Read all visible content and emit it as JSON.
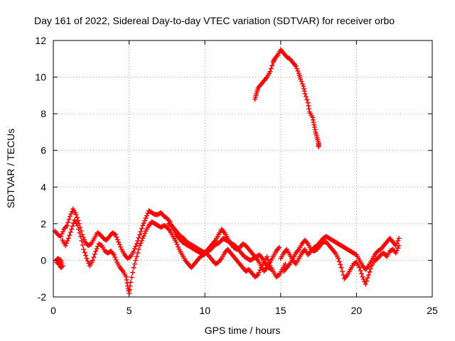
{
  "chart_data": {
    "type": "scatter",
    "title": "Day 161 of 2022, Sidereal Day-to-day VTEC variation (SDTVAR) for receiver orbo",
    "xlabel": "GPS time / hours",
    "ylabel": "SDTVAR / TECUs",
    "xlim": [
      0,
      25
    ],
    "ylim": [
      -2,
      12
    ],
    "xticks": [
      0,
      5,
      10,
      15,
      20,
      25
    ],
    "yticks": [
      -2,
      0,
      2,
      4,
      6,
      8,
      10,
      12
    ],
    "grid": true,
    "marker": "+",
    "color": "#ff0000",
    "series": [
      {
        "name": "trace-1",
        "points": [
          [
            0.1,
            1.6
          ],
          [
            0.3,
            1.4
          ],
          [
            0.5,
            1.3
          ],
          [
            0.7,
            1.7
          ],
          [
            0.9,
            1.9
          ],
          [
            1.1,
            2.4
          ],
          [
            1.3,
            2.8
          ],
          [
            1.5,
            2.5
          ],
          [
            1.7,
            2.0
          ],
          [
            1.9,
            1.4
          ],
          [
            2.1,
            1.0
          ],
          [
            2.3,
            0.8
          ],
          [
            2.5,
            0.9
          ],
          [
            2.7,
            1.2
          ],
          [
            2.9,
            1.5
          ],
          [
            3.1,
            1.4
          ],
          [
            3.3,
            1.2
          ],
          [
            3.5,
            1.1
          ],
          [
            3.7,
            1.3
          ],
          [
            3.9,
            1.5
          ],
          [
            4.1,
            1.4
          ],
          [
            4.3,
            1.0
          ],
          [
            4.5,
            0.6
          ],
          [
            4.7,
            0.3
          ],
          [
            4.9,
            0.1
          ],
          [
            5.1,
            0.2
          ],
          [
            5.3,
            0.5
          ],
          [
            5.5,
            0.9
          ],
          [
            5.7,
            1.4
          ],
          [
            5.9,
            1.9
          ],
          [
            6.1,
            2.3
          ],
          [
            6.3,
            2.7
          ],
          [
            6.5,
            2.6
          ],
          [
            6.7,
            2.5
          ],
          [
            6.9,
            2.5
          ],
          [
            7.1,
            2.6
          ],
          [
            7.3,
            2.4
          ],
          [
            7.5,
            2.3
          ],
          [
            7.7,
            2.1
          ],
          [
            7.9,
            1.7
          ],
          [
            8.1,
            1.4
          ],
          [
            8.3,
            1.2
          ],
          [
            8.5,
            1.0
          ],
          [
            8.7,
            0.9
          ],
          [
            8.9,
            0.8
          ],
          [
            9.1,
            0.7
          ],
          [
            9.3,
            0.6
          ],
          [
            9.5,
            0.5
          ],
          [
            9.7,
            0.4
          ],
          [
            9.9,
            0.4
          ],
          [
            10.1,
            0.5
          ],
          [
            10.3,
            0.7
          ],
          [
            10.5,
            0.9
          ],
          [
            10.7,
            1.1
          ],
          [
            10.9,
            1.4
          ],
          [
            11.1,
            1.7
          ],
          [
            11.3,
            1.5
          ],
          [
            11.5,
            1.2
          ],
          [
            11.7,
            0.9
          ],
          [
            11.9,
            0.7
          ],
          [
            12.1,
            0.6
          ],
          [
            12.3,
            0.7
          ],
          [
            12.5,
            0.9
          ],
          [
            12.7,
            0.8
          ],
          [
            12.9,
            0.6
          ],
          [
            13.1,
            0.4
          ],
          [
            13.3,
            0.2
          ],
          [
            13.5,
            0.0
          ],
          [
            13.7,
            -0.3
          ],
          [
            13.9,
            -0.6
          ],
          [
            14.1,
            -0.4
          ],
          [
            14.3,
            -0.1
          ],
          [
            14.5,
            0.2
          ],
          [
            14.7,
            0.5
          ],
          [
            14.9,
            0.7
          ]
        ]
      },
      {
        "name": "trace-2",
        "points": [
          [
            0.2,
            -0.1
          ],
          [
            0.4,
            -0.2
          ],
          [
            0.5,
            -0.4
          ],
          [
            0.6,
            -0.3
          ],
          [
            0.5,
            0.0
          ],
          [
            0.3,
            0.1
          ],
          [
            0.2,
            0.0
          ]
        ]
      },
      {
        "name": "trace-3",
        "points": [
          [
            0.6,
            1.1
          ],
          [
            0.8,
            0.8
          ],
          [
            1.0,
            1.2
          ],
          [
            1.2,
            1.7
          ],
          [
            1.4,
            2.2
          ],
          [
            1.6,
            1.9
          ],
          [
            1.8,
            1.3
          ],
          [
            2.0,
            0.6
          ],
          [
            2.2,
            0.1
          ],
          [
            2.4,
            -0.3
          ],
          [
            2.6,
            0.0
          ],
          [
            2.8,
            0.5
          ],
          [
            3.0,
            0.9
          ],
          [
            3.2,
            0.8
          ],
          [
            3.4,
            0.5
          ],
          [
            3.6,
            0.4
          ],
          [
            3.8,
            0.5
          ],
          [
            4.0,
            0.3
          ],
          [
            4.2,
            -0.1
          ],
          [
            4.4,
            -0.4
          ],
          [
            4.6,
            -0.6
          ],
          [
            4.8,
            -0.9
          ],
          [
            4.9,
            -1.4
          ],
          [
            5.0,
            -1.8
          ],
          [
            5.1,
            -1.2
          ],
          [
            5.3,
            -0.4
          ],
          [
            5.5,
            0.2
          ],
          [
            5.7,
            0.8
          ],
          [
            5.9,
            1.2
          ],
          [
            6.1,
            1.6
          ],
          [
            6.3,
            1.9
          ],
          [
            6.5,
            2.1
          ],
          [
            6.7,
            2.0
          ],
          [
            6.9,
            1.9
          ],
          [
            7.1,
            1.8
          ],
          [
            7.3,
            1.9
          ],
          [
            7.5,
            1.8
          ],
          [
            7.7,
            1.6
          ],
          [
            7.9,
            1.3
          ],
          [
            8.1,
            1.0
          ],
          [
            8.3,
            0.6
          ],
          [
            8.5,
            0.3
          ],
          [
            8.7,
            0.0
          ],
          [
            8.9,
            -0.2
          ],
          [
            9.1,
            -0.4
          ],
          [
            9.3,
            -0.2
          ],
          [
            9.5,
            0.0
          ],
          [
            9.7,
            0.2
          ],
          [
            9.9,
            0.3
          ],
          [
            10.1,
            0.4
          ],
          [
            10.3,
            0.2
          ],
          [
            10.5,
            0.0
          ],
          [
            10.7,
            -0.2
          ],
          [
            10.9,
            -0.1
          ],
          [
            11.1,
            0.1
          ],
          [
            11.3,
            0.4
          ],
          [
            11.5,
            0.6
          ],
          [
            11.7,
            0.4
          ],
          [
            11.9,
            0.2
          ],
          [
            12.1,
            0.0
          ],
          [
            12.3,
            -0.2
          ],
          [
            12.5,
            -0.4
          ],
          [
            12.7,
            -0.6
          ],
          [
            12.9,
            -0.5
          ],
          [
            13.1,
            -0.7
          ],
          [
            13.3,
            -0.9
          ],
          [
            13.5,
            -0.8
          ],
          [
            13.7,
            -0.4
          ],
          [
            13.9,
            -0.1
          ],
          [
            14.1,
            0.2
          ],
          [
            14.3,
            -0.3
          ],
          [
            14.5,
            -0.6
          ],
          [
            14.7,
            -0.9
          ],
          [
            14.9,
            -0.8
          ],
          [
            15.1,
            -0.5
          ],
          [
            15.3,
            -0.2
          ]
        ]
      },
      {
        "name": "trace-4",
        "points": [
          [
            7.6,
            2.0
          ],
          [
            7.8,
            1.9
          ],
          [
            8.0,
            1.7
          ],
          [
            8.2,
            1.5
          ],
          [
            8.4,
            1.3
          ],
          [
            8.6,
            1.2
          ],
          [
            8.8,
            1.0
          ],
          [
            9.0,
            0.9
          ],
          [
            9.2,
            0.8
          ],
          [
            9.4,
            0.7
          ],
          [
            9.6,
            0.6
          ],
          [
            9.8,
            0.5
          ],
          [
            10.0,
            0.4
          ],
          [
            10.2,
            0.5
          ],
          [
            10.4,
            0.6
          ],
          [
            10.6,
            0.8
          ],
          [
            10.8,
            0.9
          ],
          [
            11.0,
            1.0
          ],
          [
            11.2,
            1.2
          ],
          [
            11.4,
            1.1
          ],
          [
            11.6,
            1.0
          ],
          [
            11.8,
            0.9
          ],
          [
            12.0,
            0.8
          ],
          [
            12.2,
            0.6
          ],
          [
            12.4,
            0.4
          ],
          [
            12.6,
            0.2
          ],
          [
            12.8,
            0.1
          ],
          [
            13.0,
            0.0
          ],
          [
            13.2,
            0.1
          ],
          [
            13.4,
            0.2
          ],
          [
            13.6,
            0.3
          ],
          [
            13.8,
            0.1
          ],
          [
            14.0,
            -0.2
          ],
          [
            14.2,
            -0.4
          ],
          [
            14.4,
            -0.5
          ]
        ]
      },
      {
        "name": "trace-5",
        "points": [
          [
            15.0,
            0.1
          ],
          [
            15.2,
            0.4
          ],
          [
            15.4,
            0.6
          ],
          [
            15.6,
            0.3
          ],
          [
            15.8,
            0.0
          ],
          [
            16.0,
            -0.2
          ],
          [
            16.2,
            0.1
          ],
          [
            16.4,
            0.4
          ],
          [
            16.6,
            0.6
          ],
          [
            16.8,
            0.3
          ],
          [
            17.0,
            0.5
          ],
          [
            17.2,
            0.7
          ],
          [
            17.4,
            0.8
          ],
          [
            17.6,
            1.0
          ],
          [
            17.8,
            1.2
          ],
          [
            18.0,
            1.3
          ],
          [
            18.2,
            1.2
          ],
          [
            18.4,
            1.1
          ],
          [
            18.6,
            1.0
          ],
          [
            18.8,
            0.9
          ],
          [
            19.0,
            0.8
          ],
          [
            19.2,
            0.7
          ],
          [
            19.4,
            0.6
          ],
          [
            19.6,
            0.5
          ],
          [
            19.8,
            0.4
          ],
          [
            20.0,
            0.3
          ],
          [
            20.2,
            0.0
          ],
          [
            20.4,
            -0.3
          ],
          [
            20.6,
            -0.5
          ],
          [
            20.8,
            -0.3
          ],
          [
            21.0,
            0.0
          ],
          [
            21.2,
            0.3
          ],
          [
            21.4,
            0.5
          ],
          [
            21.6,
            0.6
          ],
          [
            21.8,
            0.8
          ],
          [
            22.0,
            1.0
          ],
          [
            22.2,
            1.2
          ],
          [
            22.4,
            1.0
          ],
          [
            22.6,
            0.8
          ],
          [
            22.8,
            1.2
          ]
        ]
      },
      {
        "name": "trace-6",
        "points": [
          [
            15.2,
            -0.6
          ],
          [
            15.4,
            -0.4
          ],
          [
            15.6,
            -0.2
          ],
          [
            15.8,
            0.1
          ],
          [
            16.0,
            0.4
          ],
          [
            16.2,
            0.6
          ],
          [
            16.4,
            0.9
          ],
          [
            16.6,
            1.1
          ],
          [
            16.8,
            0.9
          ],
          [
            17.0,
            0.6
          ],
          [
            17.2,
            0.5
          ],
          [
            17.4,
            0.6
          ],
          [
            17.6,
            0.8
          ],
          [
            17.8,
            1.0
          ],
          [
            18.0,
            1.0
          ],
          [
            18.2,
            0.8
          ],
          [
            18.4,
            0.6
          ],
          [
            18.6,
            0.4
          ],
          [
            18.8,
            0.1
          ],
          [
            19.0,
            -0.4
          ],
          [
            19.2,
            -1.0
          ],
          [
            19.4,
            -0.8
          ],
          [
            19.6,
            -0.5
          ],
          [
            19.8,
            -0.2
          ],
          [
            20.0,
            -0.1
          ],
          [
            20.2,
            -0.4
          ],
          [
            20.4,
            -0.9
          ],
          [
            20.6,
            -1.3
          ],
          [
            20.8,
            -0.8
          ],
          [
            21.0,
            -0.3
          ],
          [
            21.2,
            0.0
          ],
          [
            21.4,
            0.1
          ],
          [
            21.6,
            0.3
          ],
          [
            21.8,
            0.4
          ],
          [
            22.0,
            0.2
          ],
          [
            22.2,
            0.5
          ],
          [
            22.4,
            0.6
          ],
          [
            22.6,
            0.4
          ],
          [
            22.8,
            0.8
          ]
        ]
      },
      {
        "name": "trace-7",
        "points": [
          [
            13.3,
            8.8
          ],
          [
            13.4,
            9.1
          ],
          [
            13.5,
            9.4
          ],
          [
            13.7,
            9.6
          ],
          [
            13.9,
            9.8
          ],
          [
            14.1,
            10.0
          ],
          [
            14.3,
            10.3
          ],
          [
            14.5,
            10.8
          ],
          [
            14.6,
            11.0
          ],
          [
            14.8,
            11.2
          ],
          [
            15.0,
            11.5
          ],
          [
            15.2,
            11.3
          ],
          [
            15.4,
            11.1
          ],
          [
            15.6,
            11.0
          ],
          [
            15.8,
            10.8
          ],
          [
            16.0,
            10.6
          ],
          [
            16.2,
            10.2
          ],
          [
            16.3,
            9.9
          ],
          [
            16.5,
            9.5
          ],
          [
            16.6,
            9.1
          ],
          [
            16.8,
            8.6
          ],
          [
            16.9,
            8.1
          ],
          [
            17.1,
            7.8
          ],
          [
            17.2,
            7.4
          ],
          [
            17.3,
            7.0
          ],
          [
            17.4,
            6.7
          ],
          [
            17.5,
            6.4
          ],
          [
            17.5,
            6.2
          ]
        ]
      }
    ]
  }
}
